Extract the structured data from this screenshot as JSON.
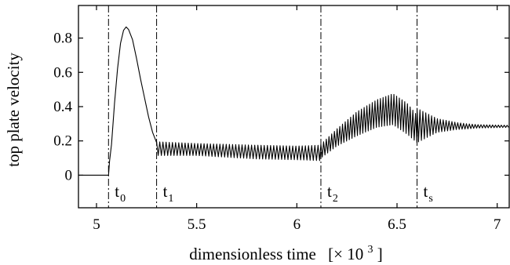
{
  "chart_data": {
    "type": "line",
    "title": "",
    "xlabel": "dimensionless time",
    "xlabel_unit": "[× 10",
    "xlabel_unit_exp": "3",
    "xlabel_unit_close": "]",
    "ylabel": "top plate velocity",
    "xlim": [
      4.91,
      7.06
    ],
    "ylim": [
      -0.19,
      0.99
    ],
    "x_ticks": [
      {
        "value": 5,
        "label": "5"
      },
      {
        "value": 5.5,
        "label": "5.5"
      },
      {
        "value": 6,
        "label": "6"
      },
      {
        "value": 6.5,
        "label": "6.5"
      },
      {
        "value": 7,
        "label": "7"
      }
    ],
    "y_ticks": [
      {
        "value": 0,
        "label": "0"
      },
      {
        "value": 0.2,
        "label": "0.2"
      },
      {
        "value": 0.4,
        "label": "0.4"
      },
      {
        "value": 0.6,
        "label": "0.6"
      },
      {
        "value": 0.8,
        "label": "0.8"
      }
    ],
    "grid": false,
    "legend": "none",
    "line_color": "#000000",
    "markers": [
      {
        "name": "t0",
        "x": 5.06,
        "base": "t",
        "sub": "0"
      },
      {
        "name": "t1",
        "x": 5.3,
        "base": "t",
        "sub": "1"
      },
      {
        "name": "t2",
        "x": 6.12,
        "base": "t",
        "sub": "2"
      },
      {
        "name": "ts",
        "x": 6.6,
        "base": "t",
        "sub": "s"
      }
    ],
    "series": [
      {
        "segments": [
          {
            "kind": "flat",
            "x0": 4.91,
            "x1": 5.06,
            "y": 0.0
          },
          {
            "kind": "curve",
            "points": [
              [
                5.06,
                0.0
              ],
              [
                5.065,
                0.08
              ],
              [
                5.075,
                0.18
              ],
              [
                5.09,
                0.42
              ],
              [
                5.105,
                0.62
              ],
              [
                5.12,
                0.77
              ],
              [
                5.135,
                0.845
              ],
              [
                5.148,
                0.865
              ],
              [
                5.16,
                0.85
              ],
              [
                5.18,
                0.79
              ],
              [
                5.2,
                0.68
              ],
              [
                5.22,
                0.56
              ],
              [
                5.24,
                0.45
              ],
              [
                5.26,
                0.34
              ],
              [
                5.28,
                0.25
              ],
              [
                5.3,
                0.19
              ]
            ]
          },
          {
            "kind": "oscillation",
            "x0": 5.3,
            "x1": 6.12,
            "period": 0.0158,
            "center": [
              [
                5.3,
                0.155
              ],
              [
                5.5,
                0.15
              ],
              [
                5.8,
                0.135
              ],
              [
                6.0,
                0.13
              ],
              [
                6.12,
                0.13
              ]
            ],
            "amplitude": [
              [
                5.3,
                0.04
              ],
              [
                5.5,
                0.035
              ],
              [
                5.8,
                0.04
              ],
              [
                6.0,
                0.04
              ],
              [
                6.12,
                0.045
              ]
            ]
          },
          {
            "kind": "oscillation",
            "x0": 6.12,
            "x1": 6.6,
            "period": 0.0135,
            "center": [
              [
                6.12,
                0.14
              ],
              [
                6.2,
                0.22
              ],
              [
                6.3,
                0.3
              ],
              [
                6.4,
                0.36
              ],
              [
                6.48,
                0.385
              ],
              [
                6.55,
                0.33
              ],
              [
                6.6,
                0.27
              ]
            ],
            "amplitude": [
              [
                6.12,
                0.04
              ],
              [
                6.2,
                0.05
              ],
              [
                6.3,
                0.07
              ],
              [
                6.4,
                0.08
              ],
              [
                6.48,
                0.09
              ],
              [
                6.55,
                0.09
              ],
              [
                6.6,
                0.08
              ]
            ]
          },
          {
            "kind": "oscillation",
            "x0": 6.6,
            "x1": 7.06,
            "period": 0.0145,
            "center": [
              [
                6.6,
                0.29
              ],
              [
                6.7,
                0.29
              ],
              [
                6.85,
                0.285
              ],
              [
                7.06,
                0.285
              ]
            ],
            "amplitude": [
              [
                6.6,
                0.1
              ],
              [
                6.7,
                0.04
              ],
              [
                6.8,
                0.02
              ],
              [
                6.9,
                0.01
              ],
              [
                7.06,
                0.006
              ]
            ]
          }
        ]
      }
    ]
  }
}
